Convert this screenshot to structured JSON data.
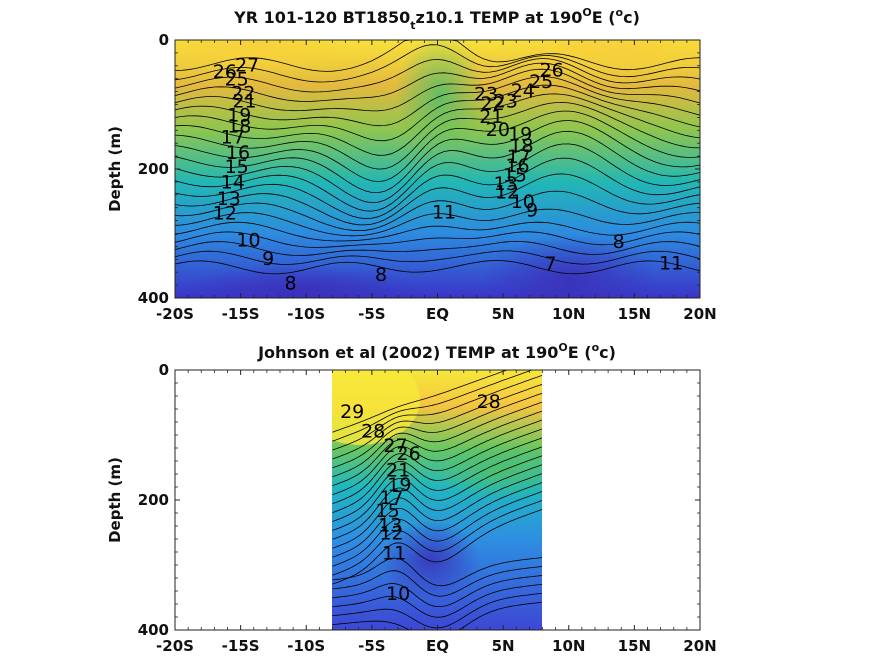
{
  "colors": {
    "warm": "#f9e13a",
    "mid": "#22b7b5",
    "cold": "#3a35c8",
    "line": "#000000"
  },
  "chart_data": [
    {
      "type": "contour",
      "title_main": "YR 101-120 BT1850",
      "title_sub": "t",
      "title_rest": "z10.1 TEMP at 190",
      "title_deg": "O",
      "title_e": "E (",
      "title_unit_sup": "o",
      "title_unit": "c)",
      "ylabel": "Depth (m)",
      "xlim": [
        -20,
        20
      ],
      "ylim": [
        0,
        400
      ],
      "x_ticks": [
        -20,
        -15,
        -10,
        -5,
        0,
        5,
        10,
        15,
        20
      ],
      "x_tick_labels": [
        "-20S",
        "-15S",
        "-10S",
        "-5S",
        "EQ",
        "5N",
        "10N",
        "15N",
        "20N"
      ],
      "y_ticks": [
        0,
        200,
        400
      ],
      "y_tick_labels": [
        "0",
        "200",
        "400"
      ],
      "data_extent": [
        -20,
        20
      ],
      "contour_labels": [
        {
          "text": "27",
          "lat": -14.5,
          "depth": 40
        },
        {
          "text": "26",
          "lat": -16.2,
          "depth": 50
        },
        {
          "text": "25",
          "lat": -15.3,
          "depth": 62
        },
        {
          "text": "22",
          "lat": -14.8,
          "depth": 84
        },
        {
          "text": "21",
          "lat": -14.7,
          "depth": 96
        },
        {
          "text": "19",
          "lat": -15.1,
          "depth": 118
        },
        {
          "text": "18",
          "lat": -15.1,
          "depth": 135
        },
        {
          "text": "17",
          "lat": -15.6,
          "depth": 152
        },
        {
          "text": "16",
          "lat": -15.2,
          "depth": 176
        },
        {
          "text": "15",
          "lat": -15.3,
          "depth": 198
        },
        {
          "text": "14",
          "lat": -15.6,
          "depth": 222
        },
        {
          "text": "13",
          "lat": -15.9,
          "depth": 247
        },
        {
          "text": "12",
          "lat": -16.2,
          "depth": 270
        },
        {
          "text": "10",
          "lat": -14.4,
          "depth": 312
        },
        {
          "text": "9",
          "lat": -12.9,
          "depth": 340
        },
        {
          "text": "8",
          "lat": -11.2,
          "depth": 378
        },
        {
          "text": "8",
          "lat": -4.3,
          "depth": 365
        },
        {
          "text": "11",
          "lat": 0.5,
          "depth": 268
        },
        {
          "text": "7",
          "lat": 8.6,
          "depth": 348
        },
        {
          "text": "8",
          "lat": 13.8,
          "depth": 314
        },
        {
          "text": "11",
          "lat": 17.8,
          "depth": 347
        },
        {
          "text": "26",
          "lat": 8.7,
          "depth": 48
        },
        {
          "text": "25",
          "lat": 7.9,
          "depth": 66
        },
        {
          "text": "24",
          "lat": 6.5,
          "depth": 80
        },
        {
          "text": "23",
          "lat": 3.7,
          "depth": 85
        },
        {
          "text": "23",
          "lat": 5.2,
          "depth": 96
        },
        {
          "text": "22",
          "lat": 4.2,
          "depth": 100
        },
        {
          "text": "21",
          "lat": 4.1,
          "depth": 120
        },
        {
          "text": "20",
          "lat": 4.6,
          "depth": 140
        },
        {
          "text": "19",
          "lat": 6.3,
          "depth": 147
        },
        {
          "text": "18",
          "lat": 6.4,
          "depth": 165
        },
        {
          "text": "17",
          "lat": 6.2,
          "depth": 182
        },
        {
          "text": "16",
          "lat": 6.1,
          "depth": 196
        },
        {
          "text": "15",
          "lat": 5.9,
          "depth": 211
        },
        {
          "text": "13",
          "lat": 5.2,
          "depth": 224
        },
        {
          "text": "12",
          "lat": 5.3,
          "depth": 237
        },
        {
          "text": "10",
          "lat": 6.5,
          "depth": 252
        },
        {
          "text": "9",
          "lat": 7.2,
          "depth": 265
        }
      ]
    },
    {
      "type": "contour",
      "title_main": "Johnson et al (2002) TEMP at 190",
      "title_deg": "O",
      "title_e": "E (",
      "title_unit_sup": "o",
      "title_unit": "c)",
      "ylabel": "Depth (m)",
      "xlim": [
        -20,
        20
      ],
      "ylim": [
        0,
        400
      ],
      "x_ticks": [
        -20,
        -15,
        -10,
        -5,
        0,
        5,
        10,
        15,
        20
      ],
      "x_tick_labels": [
        "-20S",
        "-15S",
        "-10S",
        "-5S",
        "EQ",
        "5N",
        "10N",
        "15N",
        "20N"
      ],
      "y_ticks": [
        0,
        200,
        400
      ],
      "y_tick_labels": [
        "0",
        "200",
        "400"
      ],
      "data_extent": [
        -8,
        8
      ],
      "contour_labels": [
        {
          "text": "29",
          "lat": -6.5,
          "depth": 65
        },
        {
          "text": "28",
          "lat": -4.9,
          "depth": 95
        },
        {
          "text": "28",
          "lat": 3.9,
          "depth": 50
        },
        {
          "text": "27",
          "lat": -3.2,
          "depth": 118
        },
        {
          "text": "26",
          "lat": -2.2,
          "depth": 130
        },
        {
          "text": "21",
          "lat": -3.0,
          "depth": 155
        },
        {
          "text": "19",
          "lat": -2.9,
          "depth": 178
        },
        {
          "text": "17",
          "lat": -3.5,
          "depth": 198
        },
        {
          "text": "15",
          "lat": -3.8,
          "depth": 218
        },
        {
          "text": "13",
          "lat": -3.6,
          "depth": 240
        },
        {
          "text": "12",
          "lat": -3.5,
          "depth": 252
        },
        {
          "text": "11",
          "lat": -3.3,
          "depth": 283
        },
        {
          "text": "10",
          "lat": -3.0,
          "depth": 345
        }
      ]
    }
  ]
}
